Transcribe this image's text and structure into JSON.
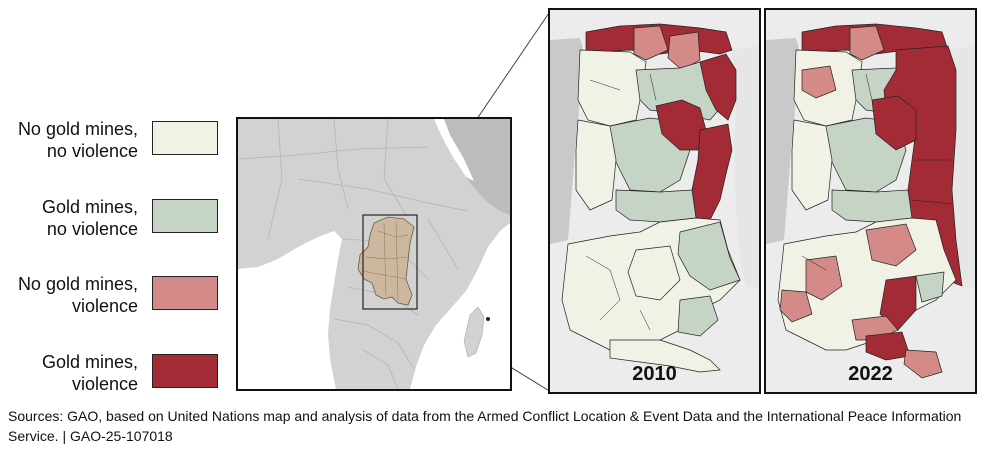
{
  "legend": {
    "items": [
      {
        "label": "No gold mines, no violence",
        "line1": "No gold mines,",
        "line2": "no violence",
        "color": "#eff2e4"
      },
      {
        "label": "Gold mines, no violence",
        "line1": "Gold mines,",
        "line2": "no violence",
        "color": "#c5d4c5"
      },
      {
        "label": "No gold mines, violence",
        "line1": "No gold mines,",
        "line2": "violence",
        "color": "#d48a86"
      },
      {
        "label": "Gold mines, violence",
        "line1": "Gold mines,",
        "line2": "violence",
        "color": "#a32b36"
      }
    ]
  },
  "panels": {
    "left_year": "2010",
    "right_year": "2022"
  },
  "source": "Sources: GAO, based on United Nations map and analysis of data from the Armed Conflict Location & Event Data and the International Peace Information Service.  |  GAO-25-107018",
  "colors": {
    "land": "#d0d0d0",
    "outside": "#bdbdbd",
    "water": "#ffffff",
    "highlight": "#cbb89f"
  }
}
